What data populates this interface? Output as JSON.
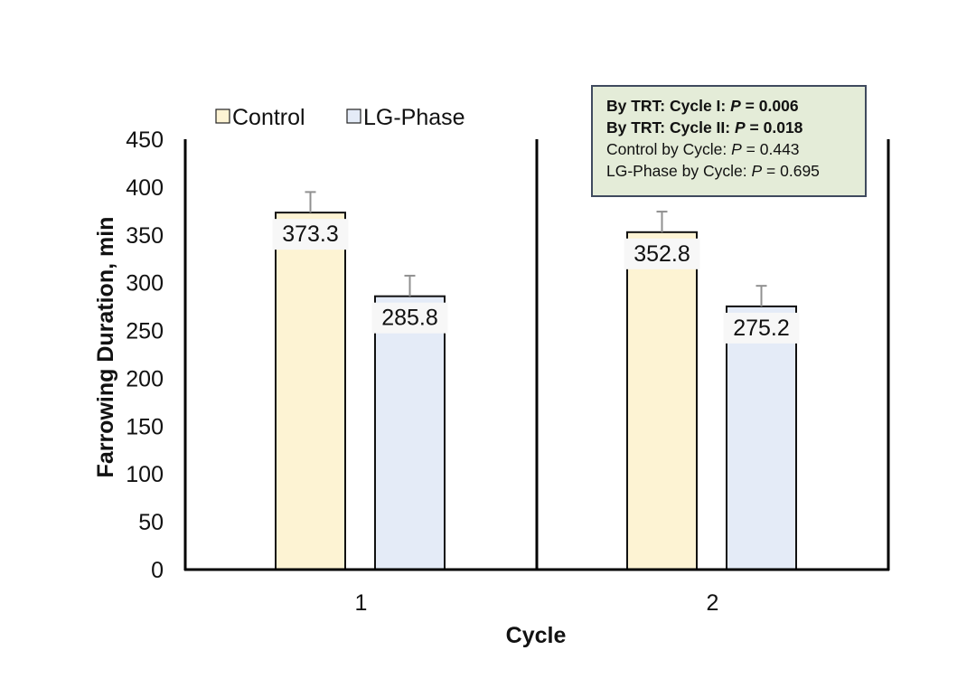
{
  "chart_data": {
    "type": "bar",
    "categories": [
      "1",
      "2"
    ],
    "series": [
      {
        "name": "Control",
        "values": [
          373.3,
          352.8
        ],
        "error": [
          21.5,
          21.5
        ],
        "color": "#fdf3d3"
      },
      {
        "name": "LG-Phase",
        "values": [
          285.8,
          275.2
        ],
        "error": [
          21.5,
          21.5
        ],
        "color": "#e4ebf7"
      }
    ],
    "data_labels": [
      [
        "373.3",
        "352.8"
      ],
      [
        "285.8",
        "275.2"
      ]
    ],
    "xlabel": "Cycle",
    "ylabel": "Farrowing Duration, min",
    "ylim": [
      0,
      450
    ],
    "yticks": [
      0,
      50,
      100,
      150,
      200,
      250,
      300,
      350,
      400,
      450
    ],
    "grid": false,
    "legend_position": "top-left",
    "annotation": {
      "lines": [
        {
          "label": "By TRT: Cycle I: ",
          "p_symbol": "P",
          "p_value": " = 0.006",
          "bold": true
        },
        {
          "label": "By TRT: Cycle II: ",
          "p_symbol": "P",
          "p_value": " = 0.018",
          "bold": true
        },
        {
          "label": "Control by Cycle: ",
          "p_symbol": "P",
          "p_value": " = 0.443",
          "bold": false
        },
        {
          "label": "LG-Phase by Cycle: ",
          "p_symbol": "P",
          "p_value": " = 0.695",
          "bold": false
        }
      ]
    }
  }
}
